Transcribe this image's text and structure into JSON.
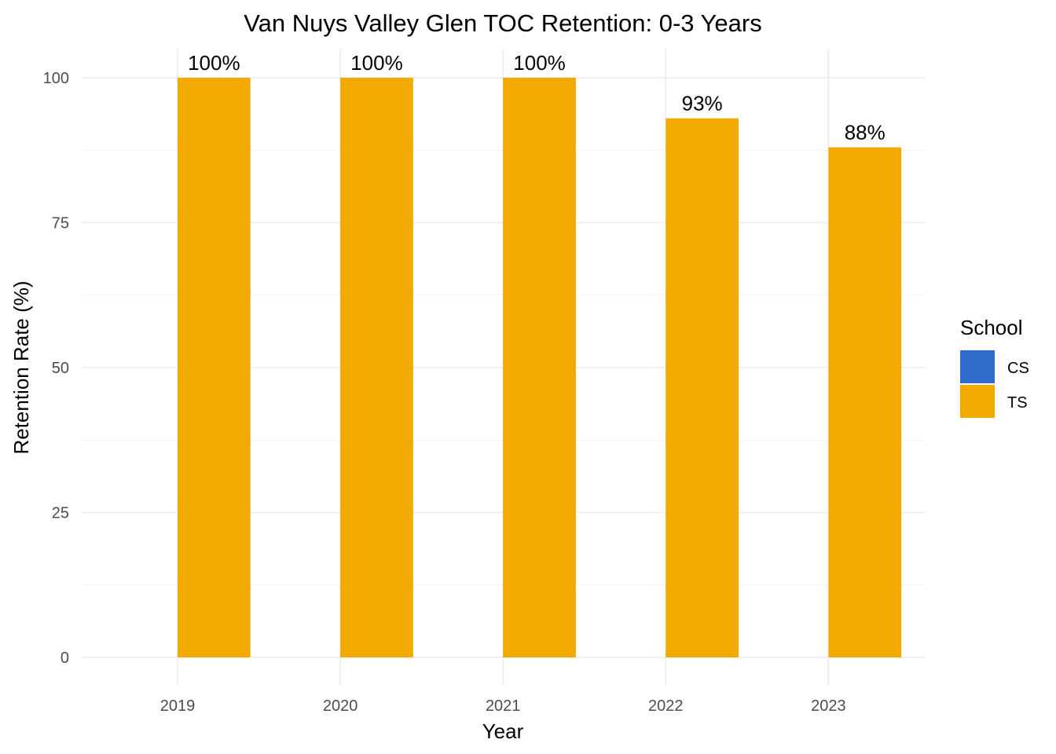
{
  "chart_data": {
    "type": "bar",
    "title": "Van Nuys Valley Glen TOC Retention: 0-3 Years",
    "xlabel": "Year",
    "ylabel": "Retention Rate (%)",
    "categories": [
      "2019",
      "2020",
      "2021",
      "2022",
      "2023"
    ],
    "series": [
      {
        "name": "CS",
        "color": "#2f6bcb",
        "values": [
          null,
          null,
          null,
          null,
          null
        ],
        "labels": [
          "",
          "",
          "",
          "",
          ""
        ]
      },
      {
        "name": "TS",
        "color": "#f2aa00",
        "values": [
          100,
          100,
          100,
          93,
          88
        ],
        "labels": [
          "100%",
          "100%",
          "100%",
          "93%",
          "88%"
        ]
      }
    ],
    "ylim": [
      0,
      100
    ],
    "yticks": [
      "0",
      "25",
      "50",
      "75",
      "100"
    ],
    "grid": true,
    "legend": {
      "title": "School",
      "position": "right"
    }
  }
}
